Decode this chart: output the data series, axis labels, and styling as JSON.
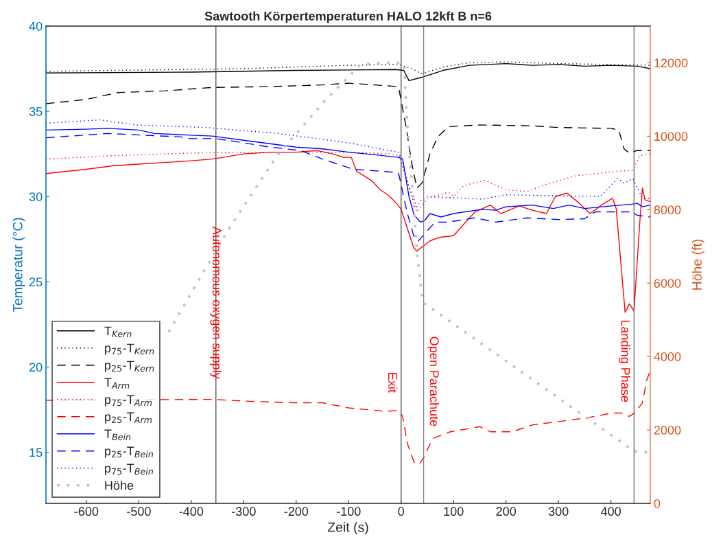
{
  "chart_data": {
    "type": "line",
    "title": "Sawtooth Körpertemperaturen HALO 12kft B n=6",
    "xlabel": "Zeit (s)",
    "ylabel": "Temperatur (°C)",
    "y2label": "Höhe (ft)",
    "xlim": [
      -677,
      475
    ],
    "xticks": [
      -600,
      -500,
      -400,
      -300,
      -200,
      -100,
      0,
      100,
      200,
      300,
      400
    ],
    "ylim": [
      12,
      40
    ],
    "yticks": [
      15,
      20,
      25,
      30,
      35,
      40
    ],
    "y2lim": [
      0,
      13000
    ],
    "y2ticks": [
      0,
      2000,
      4000,
      6000,
      8000,
      10000,
      12000
    ],
    "grid": false,
    "legend": "bottom left",
    "series": [
      {
        "name": "T$_{Kern}$",
        "color": "#000000",
        "line_style": "solid",
        "x": [
          -677,
          -400,
          -200,
          -10,
          5,
          15,
          40,
          80,
          130,
          200,
          250,
          300,
          350,
          400,
          450,
          475
        ],
        "values": [
          37.25,
          37.3,
          37.4,
          37.45,
          37.4,
          36.8,
          37.0,
          37.4,
          37.7,
          37.8,
          37.7,
          37.75,
          37.65,
          37.7,
          37.65,
          37.5
        ]
      },
      {
        "name": "p$_{75}$-T$_{Kern}$",
        "color": "#000000",
        "line_style": "dotted",
        "x": [
          -677,
          -300,
          -100,
          -5,
          20,
          40,
          80,
          130,
          200,
          300,
          400,
          475
        ],
        "values": [
          37.35,
          37.5,
          37.7,
          37.75,
          37.5,
          37.2,
          37.6,
          37.85,
          37.9,
          37.8,
          37.75,
          37.7
        ]
      },
      {
        "name": "p$_{25}$-T$_{Kern}$",
        "color": "#000000",
        "line_style": "dashed",
        "x": [
          -677,
          -600,
          -540,
          -450,
          -360,
          -250,
          -150,
          -100,
          -50,
          -5,
          10,
          20,
          30,
          40,
          55,
          70,
          90,
          150,
          250,
          300,
          400,
          415,
          425,
          435,
          450,
          475
        ],
        "values": [
          35.45,
          35.7,
          36.1,
          36.2,
          36.4,
          36.45,
          36.55,
          36.65,
          36.55,
          36.45,
          34.0,
          32.0,
          30.5,
          30.8,
          32.5,
          33.5,
          34.1,
          34.2,
          34.15,
          34.05,
          34.0,
          33.9,
          32.8,
          32.55,
          32.7,
          32.7
        ]
      },
      {
        "name": "T$_{Arm}$",
        "color": "#ff0000",
        "line_style": "solid",
        "x": [
          -677,
          -600,
          -550,
          -500,
          -450,
          -400,
          -360,
          -300,
          -250,
          -200,
          -160,
          -130,
          -110,
          -95,
          -85,
          -70,
          -55,
          -40,
          -25,
          -15,
          -6,
          0,
          24,
          30,
          55,
          72,
          100,
          120,
          141,
          170,
          190,
          225,
          250,
          277,
          294,
          316,
          340,
          360,
          382,
          403,
          410,
          427,
          435,
          444,
          455,
          460,
          465,
          475
        ],
        "values": [
          31.35,
          31.6,
          31.8,
          31.9,
          32.0,
          32.1,
          32.2,
          32.5,
          32.6,
          32.6,
          32.7,
          32.5,
          32.3,
          32.3,
          31.5,
          31.2,
          30.9,
          30.4,
          30.1,
          29.8,
          29.5,
          29.25,
          27.0,
          26.8,
          27.4,
          27.6,
          27.7,
          28.4,
          29.1,
          29.5,
          29.0,
          29.45,
          29.2,
          29.0,
          30.0,
          30.2,
          29.6,
          29.0,
          29.5,
          29.9,
          29.3,
          23.2,
          23.7,
          23.3,
          28.5,
          30.5,
          29.8,
          29.7
        ]
      },
      {
        "name": "p$_{75}$-T$_{Arm}$",
        "color": "#ff0000",
        "line_style": "dotted",
        "x": [
          -677,
          -550,
          -400,
          -300,
          -100,
          -20,
          0,
          15,
          30,
          50,
          90,
          100,
          120,
          160,
          200,
          240,
          280,
          330,
          400,
          442,
          455,
          475
        ],
        "values": [
          32.2,
          32.4,
          32.55,
          32.6,
          32.6,
          32.5,
          32.4,
          30.5,
          29.1,
          29.9,
          30.25,
          30.0,
          30.65,
          30.95,
          30.4,
          30.3,
          30.75,
          31.2,
          31.45,
          31.55,
          32.4,
          32.5
        ]
      },
      {
        "name": "p$_{25}$-T$_{Arm}$",
        "color": "#ff0000",
        "line_style": "dashed",
        "x": [
          -677,
          -360,
          -300,
          -200,
          -150,
          -100,
          -30,
          -5,
          3,
          12,
          25,
          35,
          45,
          60,
          94,
          150,
          170,
          212,
          250,
          300,
          350,
          403,
          420,
          435,
          445,
          460,
          468,
          475
        ],
        "values": [
          18.05,
          18.1,
          18.0,
          17.9,
          17.9,
          17.6,
          17.4,
          17.45,
          17.1,
          15.5,
          14.4,
          14.3,
          14.8,
          15.8,
          16.2,
          16.5,
          16.2,
          16.2,
          16.6,
          16.8,
          17.0,
          17.3,
          17.3,
          17.1,
          17.3,
          17.9,
          19.2,
          19.8
        ]
      },
      {
        "name": "T$_{Bein}$",
        "color": "#0000ff",
        "line_style": "solid",
        "x": [
          -677,
          -600,
          -560,
          -500,
          -470,
          -400,
          -360,
          -300,
          -250,
          -200,
          -150,
          -100,
          -50,
          -5,
          3,
          15,
          25,
          37,
          45,
          55,
          76,
          100,
          154,
          180,
          200,
          250,
          290,
          320,
          350,
          400,
          440,
          450,
          460,
          475
        ],
        "values": [
          33.9,
          33.95,
          34.0,
          33.9,
          33.7,
          33.6,
          33.55,
          33.3,
          33.1,
          32.9,
          32.8,
          32.6,
          32.45,
          32.3,
          32.2,
          30.0,
          28.9,
          28.5,
          28.6,
          29.0,
          28.8,
          29.0,
          29.25,
          29.2,
          29.4,
          29.5,
          29.3,
          29.5,
          29.3,
          29.45,
          29.55,
          29.6,
          29.4,
          29.5
        ]
      },
      {
        "name": "p$_{25}$-T$_{Bein}$",
        "color": "#0000ff",
        "line_style": "dashed",
        "x": [
          -677,
          -560,
          -420,
          -403,
          -353,
          -300,
          -250,
          -191,
          -150,
          -91,
          -23,
          -5,
          12,
          25,
          33,
          50,
          65,
          90,
          140,
          180,
          240,
          300,
          350,
          370,
          400,
          440,
          450,
          475
        ],
        "values": [
          33.45,
          33.7,
          33.5,
          33.4,
          33.4,
          33.15,
          32.9,
          32.7,
          32.2,
          31.6,
          31.45,
          31.4,
          29.0,
          27.6,
          27.4,
          28.0,
          28.5,
          28.5,
          28.75,
          28.5,
          28.75,
          28.65,
          28.7,
          29.1,
          29.1,
          29.1,
          28.9,
          28.8
        ]
      },
      {
        "name": "p$_{75}$-T$_{Bein}$",
        "color": "#0000ff",
        "line_style": "dotted",
        "x": [
          -677,
          -574,
          -506,
          -371,
          -235,
          -100,
          -5,
          10,
          30,
          40,
          50,
          154,
          200,
          380,
          412,
          425,
          442,
          460,
          475
        ],
        "values": [
          34.3,
          34.5,
          34.2,
          34.05,
          33.7,
          33.15,
          32.6,
          31.0,
          29.4,
          29.85,
          30.0,
          29.85,
          30.1,
          30.0,
          31.05,
          30.8,
          31.05,
          29.9,
          29.9
        ]
      },
      {
        "name": "Höhe",
        "color": "#c0c0c0",
        "line_style": "dotted",
        "axis": "y2",
        "x": [
          -443,
          -380,
          -331,
          -235,
          -145,
          -78,
          -40,
          0,
          6,
          10,
          16,
          24,
          30,
          41,
          444,
          475
        ],
        "values": [
          4670,
          6220,
          7420,
          9500,
          10970,
          11940,
          12000,
          12000,
          11960,
          10700,
          9460,
          8220,
          6900,
          5480,
          1420,
          1380
        ]
      }
    ],
    "ref_lines": [
      {
        "axis": "x",
        "value": -353,
        "label": "Autonomous oxygen supply",
        "color": "#404040"
      },
      {
        "axis": "x",
        "value": 0,
        "label": "Exit",
        "color": "#404040"
      },
      {
        "axis": "x",
        "value": 43,
        "label": "Open Parachute",
        "color": "#808080"
      },
      {
        "axis": "x",
        "value": 444,
        "label": "Landing Phase",
        "color": "#606060"
      }
    ]
  }
}
